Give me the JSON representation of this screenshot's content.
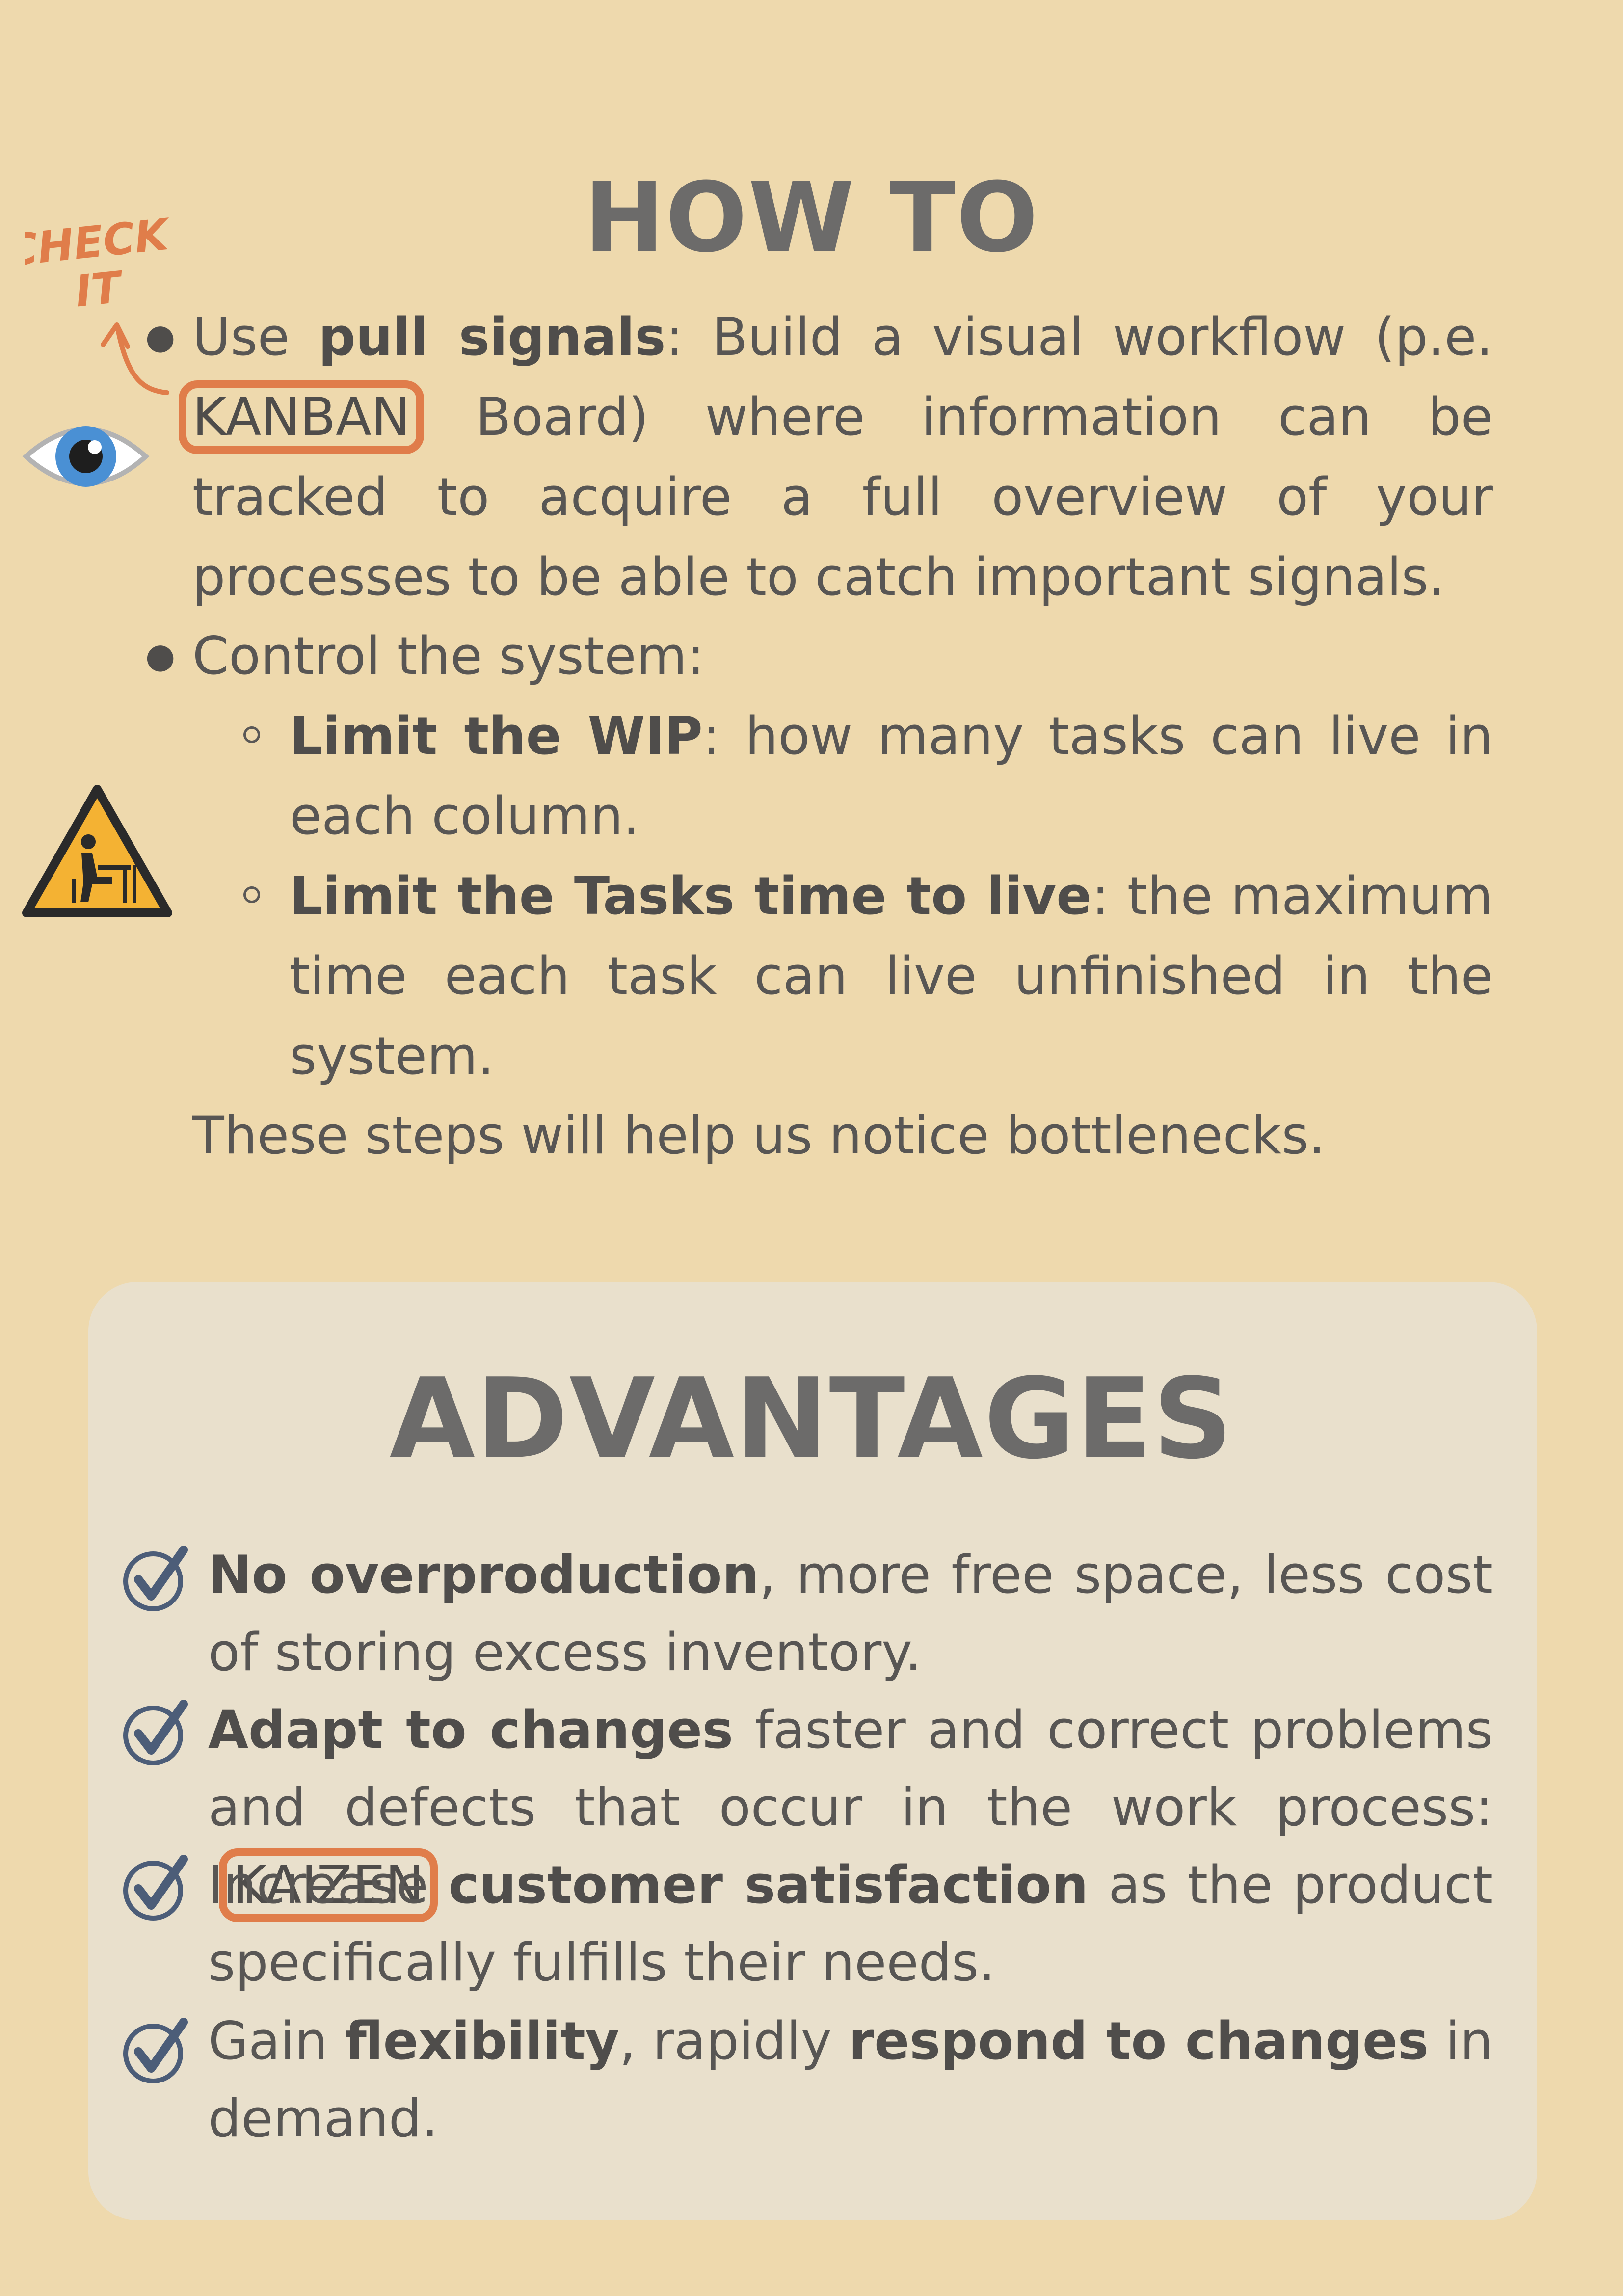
{
  "colors": {
    "background": "#EED9AD",
    "panel": "#E9E0CC",
    "accent": "#E07D4A",
    "title": "#6C6B6A",
    "text": "#585654"
  },
  "howto": {
    "title": "HOW TO",
    "check_note": {
      "line1": "CHECK",
      "line2": "IT"
    },
    "icons": [
      "eye-icon",
      "work-warning-sign-icon"
    ],
    "bullet1": {
      "lead": "Use",
      "bold": "pull signals",
      "text1": ": Build a visual workflow (p.e.",
      "tag": "KANBAN",
      "text2": "Board) where information can be tracked to acquire a full overview of your processes to be able to catch important signals."
    },
    "bullet2": {
      "text": "Control the system:"
    },
    "sub1": {
      "bold": "Limit the WIP",
      "text": ": how many tasks can live in each column."
    },
    "sub2": {
      "bold": "Limit the Tasks time to live",
      "text": ": the maximum time each task can live unfinished in the system."
    },
    "closing": "These steps will help us notice bottlenecks."
  },
  "advantages": {
    "title": "ADVANTAGES",
    "item1": {
      "bold": "No overproduction",
      "text": ", more free space, less cost of storing excess inventory."
    },
    "item2": {
      "bold": "Adapt to changes",
      "text": " faster and correct problems and defects that occur in the work process:",
      "tag": "KAIZEN",
      "tail": "."
    },
    "item3": {
      "text1": "Increase ",
      "bold": "customer satisfaction",
      "text2": " as the product specifically fulfills their needs."
    },
    "item4": {
      "text1": "Gain ",
      "bold1": "flexibility",
      "text2": ", rapidly ",
      "bold2": "respond to changes",
      "text3": " in demand."
    }
  }
}
